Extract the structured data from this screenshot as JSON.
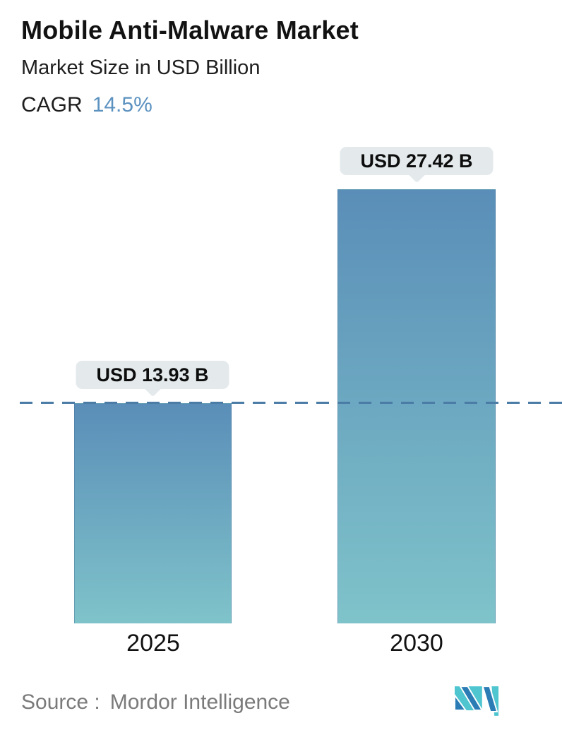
{
  "header": {
    "title": "Mobile Anti-Malware Market",
    "subtitle": "Market Size in USD Billion",
    "cagr_label": "CAGR",
    "cagr_value": "14.5%"
  },
  "chart_data": {
    "type": "bar",
    "categories": [
      "2025",
      "2030"
    ],
    "values": [
      13.93,
      27.42
    ],
    "value_labels": [
      "USD 13.93 B",
      "USD 27.42 B"
    ],
    "title": "Mobile Anti-Malware Market",
    "ylabel": "Market Size in USD Billion",
    "cagr_percent": 14.5,
    "ylim": [
      0,
      27.42
    ],
    "grid": false,
    "legend": "none",
    "reference_line": {
      "value": 13.93,
      "style": "dashed",
      "color": "#4a7ca6"
    },
    "bar_gradient_top": "#5a8eb8",
    "bar_gradient_bottom": "#7fc3ca"
  },
  "colors": {
    "accent_blue": "#5c92c0",
    "bubble_bg": "#e4eaec",
    "dash_line": "#4a7ca6",
    "source_gray": "#7a7a7a",
    "logo_blue": "#2b7cb5",
    "logo_teal": "#4ec5cf"
  },
  "footer": {
    "source_label": "Source :",
    "source_value": "Mordor Intelligence",
    "logo_name": "mordor-intelligence-logo"
  }
}
